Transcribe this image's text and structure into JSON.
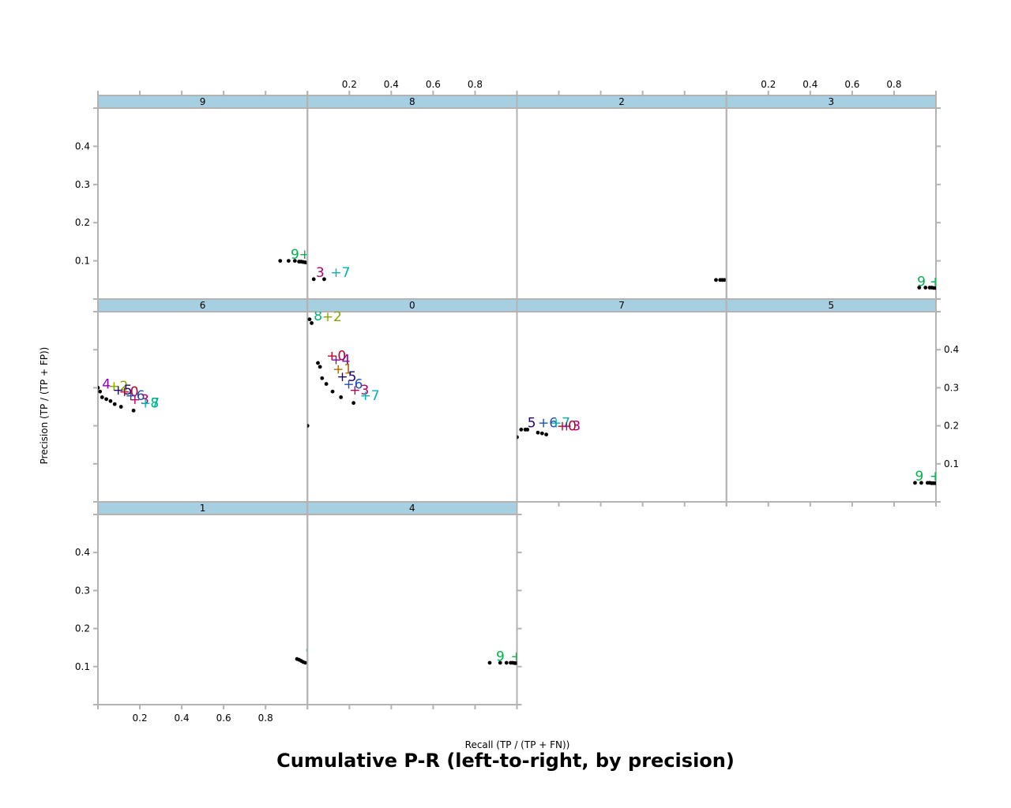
{
  "chart_data": {
    "type": "scatter",
    "title": "Cumulative P-R (left-to-right, by precision)",
    "xlabel": "Recall (TP / (TP + FN))",
    "ylabel": "Precision (TP / (TP + FP))",
    "xlim": [
      0,
      1
    ],
    "ylim": [
      0,
      0.5
    ],
    "x_ticks": [
      "0.2",
      "0.4",
      "0.6",
      "0.8"
    ],
    "y_ticks": [
      "0.1",
      "0.2",
      "0.3",
      "0.4"
    ],
    "grid": false,
    "strip_color": "#a6cfe2",
    "label_colors": {
      "0": "#c0002a",
      "1": "#b06a00",
      "2": "#80a600",
      "3": "#b0006b",
      "4": "#8e00b3",
      "5": "#20007f",
      "6": "#1c4fb8",
      "7": "#00b3b3",
      "8": "#00b37f",
      "9": "#00b34a"
    },
    "panels": [
      {
        "name": "9",
        "points": [
          [
            0.87,
            0.1
          ],
          [
            0.91,
            0.1
          ],
          [
            0.94,
            0.1
          ],
          [
            0.96,
            0.098
          ],
          [
            0.97,
            0.098
          ],
          [
            0.98,
            0.097
          ],
          [
            0.99,
            0.096
          ],
          [
            1.0,
            0.095
          ]
        ],
        "labels": [
          {
            "t": "9",
            "x": 0.92,
            "y": 0.118
          },
          {
            "t": "+",
            "x": 0.96,
            "y": 0.118
          }
        ]
      },
      {
        "name": "8",
        "points": [
          [
            0.03,
            0.052
          ],
          [
            0.08,
            0.052
          ]
        ],
        "labels": [
          {
            "t": "3",
            "x": 0.04,
            "y": 0.07
          },
          {
            "t": "+7",
            "x": 0.11,
            "y": 0.07
          }
        ]
      },
      {
        "name": "2",
        "points": [
          [
            0.95,
            0.05
          ],
          [
            0.97,
            0.05
          ],
          [
            0.98,
            0.05
          ],
          [
            0.99,
            0.05
          ],
          [
            1.0,
            0.05
          ]
        ],
        "labels": [
          {
            "t": "+",
            "x": 0.99,
            "y": 0.063
          }
        ]
      },
      {
        "name": "3",
        "points": [
          [
            0.92,
            0.03
          ],
          [
            0.95,
            0.03
          ],
          [
            0.97,
            0.03
          ],
          [
            0.98,
            0.03
          ],
          [
            0.99,
            0.029
          ],
          [
            1.0,
            0.029
          ]
        ],
        "labels": [
          {
            "t": "9",
            "x": 0.91,
            "y": 0.047
          },
          {
            "t": "+",
            "x": 0.97,
            "y": 0.047
          }
        ]
      },
      {
        "name": "6",
        "points": [
          [
            0.0,
            0.3
          ],
          [
            0.01,
            0.29
          ],
          [
            0.02,
            0.275
          ],
          [
            0.04,
            0.27
          ],
          [
            0.06,
            0.265
          ],
          [
            0.08,
            0.257
          ],
          [
            0.11,
            0.25
          ],
          [
            0.17,
            0.24
          ]
        ],
        "labels": [
          {
            "t": "4",
            "x": 0.02,
            "y": 0.31
          },
          {
            "t": "+2",
            "x": 0.05,
            "y": 0.305
          },
          {
            "t": "+5",
            "x": 0.07,
            "y": 0.295
          },
          {
            "t": "+0",
            "x": 0.1,
            "y": 0.29
          },
          {
            "t": "+6",
            "x": 0.13,
            "y": 0.28
          },
          {
            "t": "+3",
            "x": 0.15,
            "y": 0.27
          },
          {
            "t": "+7",
            "x": 0.2,
            "y": 0.26
          },
          {
            "t": "8",
            "x": 0.25,
            "y": 0.26
          }
        ]
      },
      {
        "name": "0",
        "points": [
          [
            0.0,
            0.2
          ],
          [
            0.01,
            0.48
          ],
          [
            0.02,
            0.47
          ],
          [
            0.05,
            0.365
          ],
          [
            0.06,
            0.355
          ],
          [
            0.07,
            0.325
          ],
          [
            0.09,
            0.31
          ],
          [
            0.12,
            0.29
          ],
          [
            0.16,
            0.275
          ],
          [
            0.22,
            0.26
          ]
        ],
        "labels": [
          {
            "t": "8",
            "x": 0.03,
            "y": 0.49
          },
          {
            "t": "+2",
            "x": 0.07,
            "y": 0.488
          },
          {
            "t": "+0",
            "x": 0.09,
            "y": 0.385
          },
          {
            "t": "+4",
            "x": 0.11,
            "y": 0.375
          },
          {
            "t": "+1",
            "x": 0.12,
            "y": 0.35
          },
          {
            "t": "+5",
            "x": 0.14,
            "y": 0.33
          },
          {
            "t": "+6",
            "x": 0.17,
            "y": 0.31
          },
          {
            "t": "+3",
            "x": 0.2,
            "y": 0.295
          },
          {
            "t": "+7",
            "x": 0.25,
            "y": 0.28
          }
        ]
      },
      {
        "name": "7",
        "points": [
          [
            0.0,
            0.17
          ],
          [
            0.02,
            0.19
          ],
          [
            0.04,
            0.19
          ],
          [
            0.05,
            0.19
          ],
          [
            0.1,
            0.182
          ],
          [
            0.12,
            0.18
          ],
          [
            0.14,
            0.177
          ]
        ],
        "labels": [
          {
            "t": "5",
            "x": 0.05,
            "y": 0.208
          },
          {
            "t": "+6",
            "x": 0.1,
            "y": 0.208
          },
          {
            "t": "+7",
            "x": 0.16,
            "y": 0.208
          },
          {
            "t": "+0",
            "x": 0.19,
            "y": 0.2
          },
          {
            "t": "+3",
            "x": 0.21,
            "y": 0.2
          }
        ]
      },
      {
        "name": "5",
        "points": [
          [
            0.9,
            0.05
          ],
          [
            0.93,
            0.05
          ],
          [
            0.96,
            0.05
          ],
          [
            0.97,
            0.05
          ],
          [
            0.98,
            0.049
          ],
          [
            0.99,
            0.049
          ],
          [
            1.0,
            0.049
          ]
        ],
        "labels": [
          {
            "t": "9",
            "x": 0.9,
            "y": 0.068
          },
          {
            "t": "+",
            "x": 0.97,
            "y": 0.068
          }
        ]
      },
      {
        "name": "1",
        "points": [
          [
            0.95,
            0.12
          ],
          [
            0.96,
            0.118
          ],
          [
            0.97,
            0.115
          ],
          [
            0.98,
            0.112
          ],
          [
            0.99,
            0.11
          ]
        ],
        "labels": [
          {
            "t": "9",
            "x": 0.99,
            "y": 0.138
          }
        ]
      },
      {
        "name": "4",
        "points": [
          [
            0.87,
            0.11
          ],
          [
            0.92,
            0.11
          ],
          [
            0.95,
            0.11
          ],
          [
            0.97,
            0.11
          ],
          [
            0.98,
            0.11
          ],
          [
            0.99,
            0.109
          ],
          [
            1.0,
            0.109
          ]
        ],
        "labels": [
          {
            "t": "9",
            "x": 0.9,
            "y": 0.128
          },
          {
            "t": "+",
            "x": 0.97,
            "y": 0.128
          }
        ]
      }
    ]
  }
}
